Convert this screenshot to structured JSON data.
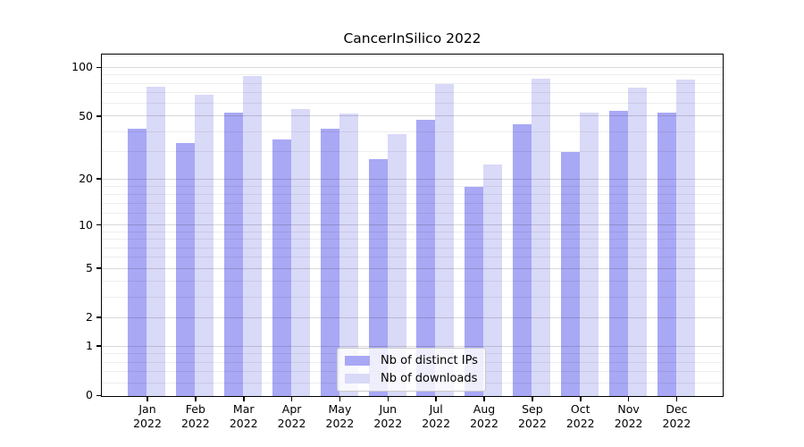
{
  "chart_data": {
    "type": "bar",
    "title": "CancerInSilico 2022",
    "categories": [
      "Jan",
      "Feb",
      "Mar",
      "Apr",
      "May",
      "Jun",
      "Jul",
      "Aug",
      "Sep",
      "Oct",
      "Nov",
      "Dec"
    ],
    "category_year": "2022",
    "series": [
      {
        "name": "Nb of distinct IPs",
        "color": "#a8a8f5",
        "values": [
          42,
          34,
          53,
          36,
          42,
          27,
          48,
          18,
          45,
          30,
          54,
          53
        ]
      },
      {
        "name": "Nb of downloads",
        "color": "#d9d9f8",
        "values": [
          77,
          68,
          89,
          56,
          52,
          39,
          80,
          25,
          86,
          53,
          76,
          85
        ]
      }
    ],
    "xlabel": "",
    "ylabel": "",
    "y_scale": "log1p",
    "y_major_ticks": [
      0,
      1,
      2,
      5,
      10,
      20,
      50,
      100
    ],
    "y_minor_ticks": [
      0.2,
      0.4,
      0.6,
      0.8,
      3,
      4,
      6,
      7,
      8,
      9,
      12,
      14,
      16,
      18,
      30,
      40,
      60,
      70,
      80,
      90
    ],
    "ylim": [
      0,
      111
    ],
    "grid": "horizontal",
    "legend_position": "lower center"
  }
}
